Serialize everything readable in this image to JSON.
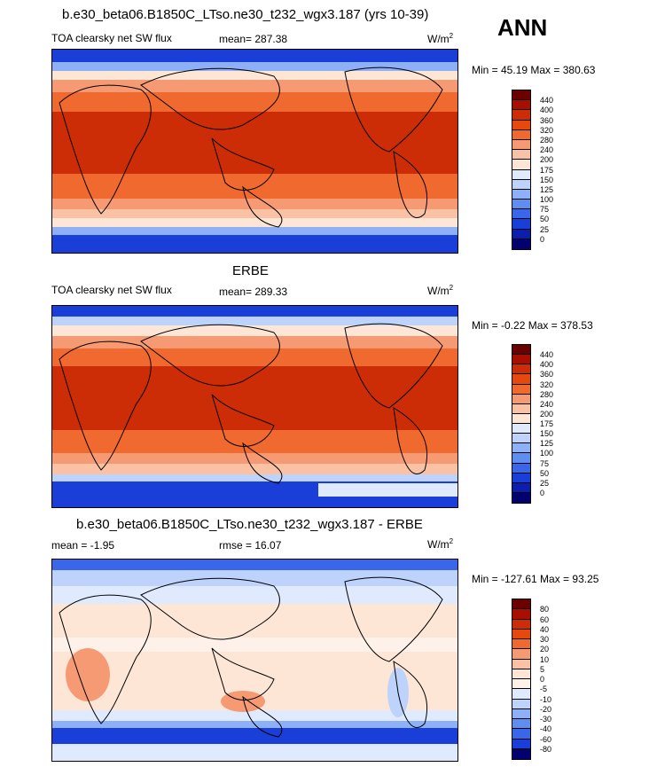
{
  "header": {
    "title": "b.e30_beta06.B1850C_LTso.ne30_t232_wgx3.187 (yrs 10-39)",
    "season": "ANN"
  },
  "panels": [
    {
      "title": "",
      "left_label": "TOA clearsky net SW flux",
      "center_label": "mean= 287.38",
      "units": "W/m",
      "units_sup": "2",
      "minmax": "Min =  45.19 Max = 380.63",
      "colorbar": {
        "labels": [
          "440",
          "400",
          "360",
          "320",
          "280",
          "240",
          "200",
          "175",
          "150",
          "125",
          "100",
          "75",
          "50",
          "25",
          "0"
        ]
      }
    },
    {
      "title": "ERBE",
      "left_label": "TOA clearsky net SW flux",
      "center_label": "mean= 289.33",
      "units": "W/m",
      "units_sup": "2",
      "minmax": "Min =  -0.22 Max = 378.53",
      "colorbar": {
        "labels": [
          "440",
          "400",
          "360",
          "320",
          "280",
          "240",
          "200",
          "175",
          "150",
          "125",
          "100",
          "75",
          "50",
          "25",
          "0"
        ]
      }
    },
    {
      "title": "b.e30_beta06.B1850C_LTso.ne30_t232_wgx3.187 - ERBE",
      "left_label": "mean =  -1.95",
      "center_label": "rmse =  16.07",
      "units": "W/m",
      "units_sup": "2",
      "minmax": "Min = -127.61 Max =  93.25",
      "colorbar": {
        "labels": [
          "80",
          "60",
          "40",
          "30",
          "20",
          "10",
          "5",
          "0",
          "-5",
          "-10",
          "-20",
          "-30",
          "-40",
          "-60",
          "-80"
        ]
      }
    }
  ],
  "colors": {
    "abs_scale": [
      "#6b0000",
      "#a80f00",
      "#cc2d07",
      "#e5490e",
      "#f0692e",
      "#f59a73",
      "#f9c2a5",
      "#fde6d6",
      "#dfeaff",
      "#bdd3fb",
      "#8db0f7",
      "#5f8ef2",
      "#3a66ea",
      "#1a3fd9",
      "#0a1fb0",
      "#03006f"
    ],
    "diff_scale": [
      "#6b0000",
      "#a80f00",
      "#cc2d07",
      "#e5490e",
      "#f0692e",
      "#f59a73",
      "#f9c2a5",
      "#fde6d6",
      "#fdf1ea",
      "#dfeaff",
      "#bdd3fb",
      "#8db0f7",
      "#5f8ef2",
      "#3a66ea",
      "#1a3fd9",
      "#03006f"
    ]
  }
}
